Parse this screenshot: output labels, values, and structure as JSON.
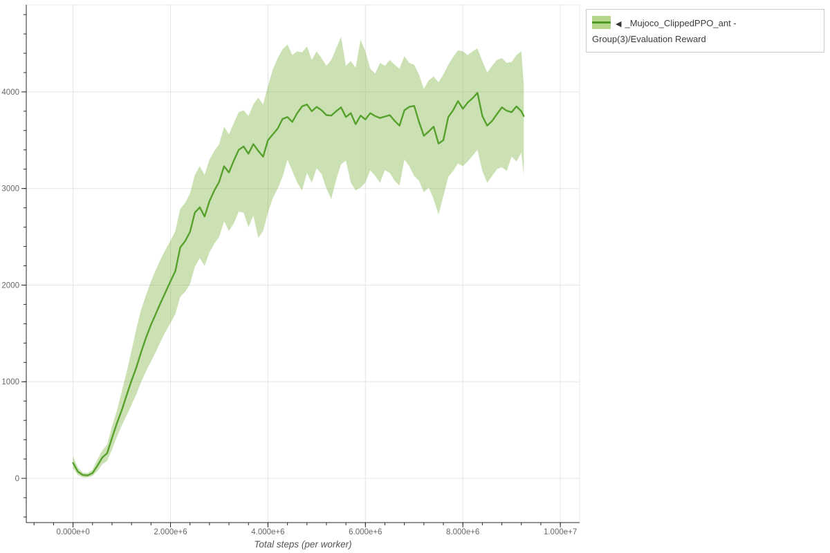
{
  "page": {
    "background": "#ffffff"
  },
  "legend": {
    "marker": "◀",
    "label": "_Mujoco_ClippedPPO_ant - Group(3)/Evaluation Reward",
    "swatch_band_color": "#b6d78b",
    "swatch_line_color": "#4f9a27",
    "border_color": "#cbcbcb",
    "text_color": "#3c3c3c"
  },
  "chart_data": {
    "type": "line",
    "title": "",
    "xlabel": "Total steps (per worker)",
    "ylabel": "",
    "grid": true,
    "legend_position": "top-right",
    "x_range": [
      -959500,
      10396000
    ],
    "y_range": [
      -458,
      4901
    ],
    "x_tick_values": [
      0,
      2000000,
      4000000,
      6000000,
      8000000,
      10000000
    ],
    "x_tick_labels": [
      "0.000e+0",
      "2.000e+6",
      "4.000e+6",
      "6.000e+6",
      "8.000e+6",
      "1.000e+7"
    ],
    "y_tick_values": [
      0,
      1000,
      2000,
      3000,
      4000
    ],
    "y_tick_labels": [
      "0",
      "1000",
      "2000",
      "3000",
      "4000"
    ],
    "x_minor_step": 400000,
    "y_minor_step": 200,
    "style": {
      "grid_color": "#e5e5e5",
      "outline_color": "#e8e8e8",
      "axis_color": "#262626",
      "tick_label_color": "#666666",
      "axis_title_color": "#555555"
    },
    "series": [
      {
        "name": "_Mujoco_ClippedPPO_ant - Group(3)/Evaluation Reward",
        "line_color": "#56a02c",
        "band_color": "rgba(126,179,66,0.40)",
        "x": [
          0,
          100000,
          200000,
          300000,
          400000,
          500000,
          600000,
          700000,
          800000,
          900000,
          1000000,
          1100000,
          1200000,
          1300000,
          1400000,
          1500000,
          1600000,
          1700000,
          1800000,
          1900000,
          2000000,
          2100000,
          2200000,
          2300000,
          2400000,
          2500000,
          2600000,
          2700000,
          2800000,
          2900000,
          3000000,
          3100000,
          3200000,
          3300000,
          3400000,
          3500000,
          3600000,
          3700000,
          3800000,
          3900000,
          4000000,
          4100000,
          4200000,
          4300000,
          4400000,
          4500000,
          4600000,
          4700000,
          4800000,
          4900000,
          5000000,
          5100000,
          5200000,
          5300000,
          5400000,
          5500000,
          5600000,
          5700000,
          5800000,
          5900000,
          6000000,
          6100000,
          6200000,
          6300000,
          6400000,
          6500000,
          6600000,
          6700000,
          6800000,
          6900000,
          7000000,
          7100000,
          7200000,
          7300000,
          7400000,
          7500000,
          7600000,
          7700000,
          7800000,
          7900000,
          8000000,
          8100000,
          8200000,
          8300000,
          8400000,
          8500000,
          8600000,
          8700000,
          8800000,
          8900000,
          9000000,
          9100000,
          9200000,
          9250000
        ],
        "mean": [
          160,
          70,
          35,
          30,
          55,
          130,
          215,
          260,
          420,
          570,
          705,
          860,
          1010,
          1150,
          1310,
          1460,
          1590,
          1705,
          1820,
          1930,
          2040,
          2145,
          2390,
          2455,
          2550,
          2750,
          2805,
          2710,
          2870,
          2980,
          3070,
          3230,
          3165,
          3290,
          3400,
          3435,
          3360,
          3460,
          3390,
          3330,
          3500,
          3560,
          3620,
          3720,
          3740,
          3690,
          3780,
          3850,
          3870,
          3800,
          3845,
          3810,
          3760,
          3755,
          3800,
          3840,
          3740,
          3780,
          3665,
          3755,
          3715,
          3780,
          3750,
          3730,
          3745,
          3760,
          3700,
          3650,
          3810,
          3845,
          3855,
          3690,
          3545,
          3590,
          3640,
          3465,
          3500,
          3740,
          3810,
          3905,
          3825,
          3890,
          3935,
          3990,
          3750,
          3650,
          3700,
          3770,
          3840,
          3805,
          3790,
          3850,
          3800,
          3750
        ],
        "band_upper": [
          230,
          110,
          60,
          55,
          90,
          195,
          290,
          350,
          540,
          700,
          900,
          1100,
          1320,
          1550,
          1750,
          1900,
          2040,
          2160,
          2270,
          2370,
          2460,
          2560,
          2790,
          2850,
          2950,
          3140,
          3230,
          3140,
          3300,
          3390,
          3460,
          3640,
          3560,
          3680,
          3790,
          3810,
          3750,
          3870,
          3940,
          3870,
          4060,
          4230,
          4350,
          4440,
          4490,
          4380,
          4420,
          4410,
          4470,
          4330,
          4420,
          4350,
          4270,
          4330,
          4450,
          4570,
          4270,
          4320,
          4250,
          4540,
          4420,
          4240,
          4190,
          4300,
          4270,
          4330,
          4280,
          4240,
          4370,
          4300,
          4280,
          4180,
          4030,
          4120,
          4160,
          4100,
          4180,
          4280,
          4360,
          4430,
          4420,
          4380,
          4420,
          4450,
          4320,
          4200,
          4270,
          4330,
          4350,
          4300,
          4310,
          4380,
          4420,
          4080
        ],
        "band_lower": [
          105,
          35,
          10,
          10,
          25,
          75,
          145,
          180,
          300,
          430,
          545,
          650,
          760,
          870,
          1000,
          1110,
          1210,
          1310,
          1420,
          1520,
          1610,
          1700,
          1880,
          1930,
          2010,
          2190,
          2280,
          2200,
          2340,
          2430,
          2500,
          2660,
          2560,
          2640,
          2760,
          2750,
          2600,
          2720,
          2490,
          2560,
          2750,
          2900,
          3000,
          3120,
          3300,
          3180,
          3060,
          2980,
          3160,
          3060,
          3210,
          3150,
          3000,
          2890,
          3090,
          3250,
          3290,
          3060,
          2980,
          3010,
          3060,
          3190,
          3130,
          3060,
          3190,
          3160,
          3080,
          3030,
          3300,
          3230,
          3130,
          3080,
          2960,
          3010,
          2890,
          2730,
          2920,
          3120,
          3180,
          3260,
          3230,
          3280,
          3340,
          3400,
          3180,
          3060,
          3130,
          3200,
          3220,
          3180,
          3330,
          3280,
          3370,
          3140
        ]
      }
    ]
  }
}
